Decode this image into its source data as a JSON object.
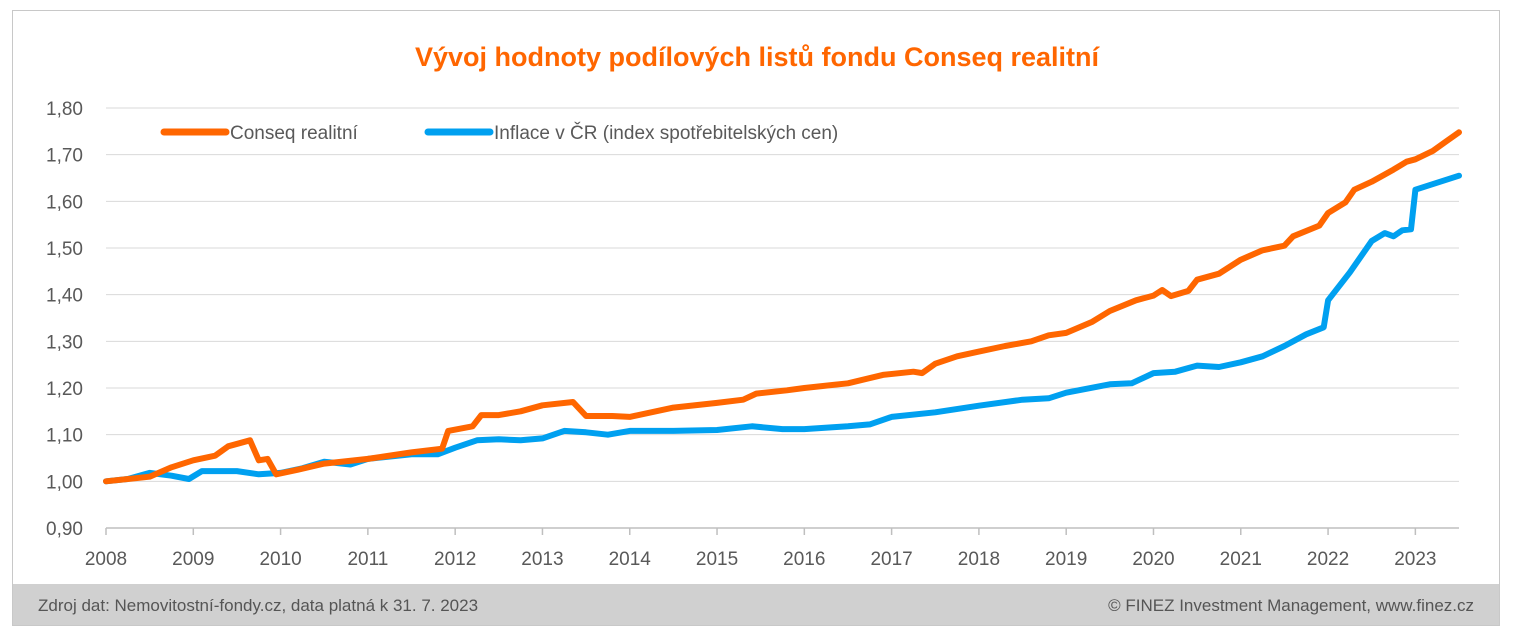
{
  "colors": {
    "conseq": "#ff6600",
    "inflace": "#00a0f0",
    "title": "#ff6600",
    "grid": "#d9d9d9",
    "axis_text": "#595959",
    "footer_bg": "#d0d0d0"
  },
  "footer": {
    "source": "Zdroj dat: Nemovitostní-fondy.cz, data platná k 31. 7. 2023",
    "copyright": "© FINEZ Investment Management, www.finez.cz"
  },
  "chart_data": {
    "type": "line",
    "title": "Vývoj hodnoty podílových listů fondu Conseq realitní",
    "xlabel": "",
    "ylabel": "",
    "xlim": [
      2008,
      2023.5
    ],
    "ylim": [
      0.9,
      1.8
    ],
    "x_ticks": [
      "2008",
      "2009",
      "2010",
      "2011",
      "2012",
      "2013",
      "2014",
      "2015",
      "2016",
      "2017",
      "2018",
      "2019",
      "2020",
      "2021",
      "2022",
      "2023"
    ],
    "y_ticks": [
      "0,90",
      "1,00",
      "1,10",
      "1,20",
      "1,30",
      "1,40",
      "1,50",
      "1,60",
      "1,70",
      "1,80"
    ],
    "grid": "horizontal",
    "legend_position": "top-left",
    "series": [
      {
        "name": "Conseq realitní",
        "color": "#ff6600",
        "points": [
          [
            2008.0,
            1.0
          ],
          [
            2008.5,
            1.01
          ],
          [
            2008.75,
            1.03
          ],
          [
            2009.0,
            1.045
          ],
          [
            2009.25,
            1.055
          ],
          [
            2009.4,
            1.075
          ],
          [
            2009.65,
            1.088
          ],
          [
            2009.75,
            1.045
          ],
          [
            2009.85,
            1.048
          ],
          [
            2009.95,
            1.015
          ],
          [
            2010.2,
            1.025
          ],
          [
            2010.5,
            1.038
          ],
          [
            2011.0,
            1.048
          ],
          [
            2011.5,
            1.062
          ],
          [
            2011.85,
            1.07
          ],
          [
            2011.92,
            1.108
          ],
          [
            2012.2,
            1.118
          ],
          [
            2012.3,
            1.142
          ],
          [
            2012.5,
            1.142
          ],
          [
            2012.75,
            1.15
          ],
          [
            2013.0,
            1.163
          ],
          [
            2013.35,
            1.17
          ],
          [
            2013.5,
            1.14
          ],
          [
            2013.8,
            1.14
          ],
          [
            2014.0,
            1.138
          ],
          [
            2014.5,
            1.158
          ],
          [
            2015.0,
            1.168
          ],
          [
            2015.3,
            1.175
          ],
          [
            2015.45,
            1.188
          ],
          [
            2015.8,
            1.195
          ],
          [
            2016.0,
            1.2
          ],
          [
            2016.5,
            1.21
          ],
          [
            2016.9,
            1.228
          ],
          [
            2017.25,
            1.235
          ],
          [
            2017.35,
            1.232
          ],
          [
            2017.5,
            1.252
          ],
          [
            2017.75,
            1.268
          ],
          [
            2018.0,
            1.278
          ],
          [
            2018.3,
            1.29
          ],
          [
            2018.6,
            1.3
          ],
          [
            2018.8,
            1.313
          ],
          [
            2019.0,
            1.318
          ],
          [
            2019.3,
            1.342
          ],
          [
            2019.5,
            1.365
          ],
          [
            2019.8,
            1.388
          ],
          [
            2020.0,
            1.398
          ],
          [
            2020.1,
            1.41
          ],
          [
            2020.2,
            1.397
          ],
          [
            2020.4,
            1.408
          ],
          [
            2020.5,
            1.432
          ],
          [
            2020.75,
            1.445
          ],
          [
            2021.0,
            1.475
          ],
          [
            2021.25,
            1.495
          ],
          [
            2021.5,
            1.505
          ],
          [
            2021.6,
            1.525
          ],
          [
            2021.9,
            1.548
          ],
          [
            2022.0,
            1.575
          ],
          [
            2022.2,
            1.598
          ],
          [
            2022.3,
            1.625
          ],
          [
            2022.5,
            1.642
          ],
          [
            2022.75,
            1.668
          ],
          [
            2022.9,
            1.685
          ],
          [
            2023.0,
            1.69
          ],
          [
            2023.2,
            1.708
          ],
          [
            2023.35,
            1.728
          ],
          [
            2023.5,
            1.748
          ]
        ]
      },
      {
        "name": "Inflace v ČR (index spotřebitelských cen)",
        "color": "#00a0f0",
        "points": [
          [
            2008.0,
            1.0
          ],
          [
            2008.25,
            1.005
          ],
          [
            2008.5,
            1.018
          ],
          [
            2008.75,
            1.012
          ],
          [
            2008.95,
            1.005
          ],
          [
            2009.1,
            1.022
          ],
          [
            2009.5,
            1.022
          ],
          [
            2009.75,
            1.015
          ],
          [
            2010.0,
            1.018
          ],
          [
            2010.25,
            1.028
          ],
          [
            2010.5,
            1.042
          ],
          [
            2010.8,
            1.036
          ],
          [
            2011.0,
            1.048
          ],
          [
            2011.5,
            1.058
          ],
          [
            2011.8,
            1.058
          ],
          [
            2012.0,
            1.072
          ],
          [
            2012.25,
            1.088
          ],
          [
            2012.5,
            1.09
          ],
          [
            2012.75,
            1.088
          ],
          [
            2013.0,
            1.092
          ],
          [
            2013.25,
            1.108
          ],
          [
            2013.5,
            1.105
          ],
          [
            2013.75,
            1.1
          ],
          [
            2014.0,
            1.108
          ],
          [
            2014.5,
            1.108
          ],
          [
            2015.0,
            1.11
          ],
          [
            2015.4,
            1.118
          ],
          [
            2015.75,
            1.112
          ],
          [
            2016.0,
            1.112
          ],
          [
            2016.5,
            1.118
          ],
          [
            2016.75,
            1.122
          ],
          [
            2017.0,
            1.138
          ],
          [
            2017.5,
            1.148
          ],
          [
            2018.0,
            1.162
          ],
          [
            2018.5,
            1.175
          ],
          [
            2018.8,
            1.178
          ],
          [
            2019.0,
            1.19
          ],
          [
            2019.5,
            1.208
          ],
          [
            2019.75,
            1.21
          ],
          [
            2020.0,
            1.232
          ],
          [
            2020.25,
            1.235
          ],
          [
            2020.5,
            1.248
          ],
          [
            2020.75,
            1.245
          ],
          [
            2021.0,
            1.255
          ],
          [
            2021.25,
            1.268
          ],
          [
            2021.5,
            1.29
          ],
          [
            2021.75,
            1.315
          ],
          [
            2021.95,
            1.33
          ],
          [
            2022.0,
            1.388
          ],
          [
            2022.25,
            1.448
          ],
          [
            2022.5,
            1.515
          ],
          [
            2022.65,
            1.532
          ],
          [
            2022.75,
            1.525
          ],
          [
            2022.85,
            1.538
          ],
          [
            2022.95,
            1.54
          ],
          [
            2023.0,
            1.625
          ],
          [
            2023.25,
            1.64
          ],
          [
            2023.5,
            1.655
          ]
        ]
      }
    ]
  }
}
